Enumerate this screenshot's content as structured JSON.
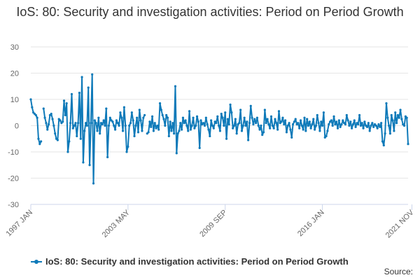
{
  "chart_data": {
    "type": "line",
    "title": "IoS: 80: Security and investigation activities: Period on Period Growth",
    "xlabel": "",
    "ylabel": "",
    "ylim": [
      -30,
      30
    ],
    "yticks": [
      30,
      20,
      10,
      0,
      -10,
      -20,
      -30
    ],
    "xticks": [
      {
        "label": "1997 JAN",
        "index": 0
      },
      {
        "label": "2003 MAY",
        "index": 76
      },
      {
        "label": "2009 SEP",
        "index": 152
      },
      {
        "label": "2016 JAN",
        "index": 228
      },
      {
        "label": "2021 NOV",
        "index": 298
      }
    ],
    "series": [
      {
        "name": "IoS: 80: Security and investigation activities: Period on Period Growth",
        "color": "#0f7ab9",
        "values": [
          10,
          7,
          5,
          4.5,
          4,
          3,
          -5,
          -7,
          -6,
          null,
          6.5,
          3,
          1,
          -1.5,
          0.5,
          4,
          4.5,
          2.5,
          0,
          -3,
          -5,
          -5.5,
          2.5,
          2,
          1,
          1.5,
          9.5,
          4,
          8.5,
          -10,
          -6,
          1,
          12,
          -1,
          0,
          1,
          -4,
          1,
          12.5,
          -5,
          18.5,
          -14,
          -2,
          1,
          0,
          14.5,
          -15,
          1,
          19.5,
          -22,
          2,
          1,
          -2,
          3,
          -3,
          1,
          0.5,
          2,
          0,
          6.5,
          -12,
          0,
          3,
          2,
          1.5,
          0,
          -1.5,
          2,
          1,
          0,
          5,
          3,
          -2,
          7,
          0,
          -10,
          -8,
          0,
          1,
          5,
          2,
          -4,
          0,
          3,
          -2.5,
          6,
          2,
          -2,
          3,
          4,
          null,
          -3,
          -2.5,
          1.5,
          -0.5,
          3.5,
          -2,
          1,
          -1,
          0,
          -1.5,
          8.5,
          6,
          4,
          2.5,
          0,
          4,
          3,
          -4,
          1.5,
          -2,
          1,
          -3,
          15,
          -10.5,
          -3,
          -2,
          1,
          -1.5,
          3,
          1,
          2,
          0,
          -2,
          5.5,
          -1.5,
          0,
          3,
          -1,
          0,
          3.5,
          1.5,
          -8.5,
          2,
          0.5,
          1,
          0,
          3,
          0.5,
          -1.5,
          -4,
          2,
          0,
          -1,
          1.5,
          1,
          3.5,
          0,
          -2,
          4.5,
          3,
          0,
          5,
          -5,
          2.5,
          0.5,
          8,
          5,
          -1,
          0,
          2.5,
          -3,
          0.5,
          1,
          6,
          -2,
          0,
          3,
          0,
          1.5,
          -5.5,
          1,
          7.5,
          3,
          0.5,
          2.5,
          1,
          3,
          0,
          -1.5,
          0,
          -3.5,
          -2.5,
          6,
          1,
          2.5,
          0.5,
          -1,
          3.5,
          0,
          -1,
          2.5,
          1,
          -1.5,
          5.5,
          1,
          1.5,
          3,
          0.5,
          2,
          -2.5,
          0,
          1,
          -1.5,
          -4.5,
          0.5,
          1.5,
          2.5,
          0.5,
          1,
          -1,
          2,
          0,
          -1.5,
          3,
          -2,
          2.5,
          0,
          1.5,
          -1,
          0.5,
          2.5,
          -1.5,
          0,
          4,
          1,
          -2,
          1.5,
          0,
          5,
          -4.5,
          -4,
          -2,
          0.5,
          1.5,
          2,
          0,
          3.5,
          0.5,
          1.5,
          -1,
          2,
          -0.5,
          0.5,
          2,
          1,
          0.5,
          4,
          2,
          0,
          1.5,
          -1,
          0.5,
          2,
          -0.5,
          1,
          0.5,
          4,
          0,
          1,
          -1,
          1.5,
          0,
          -0.5,
          1,
          -2,
          0,
          1,
          -0.5,
          0.5,
          0,
          -1,
          0.5,
          -0.5,
          1,
          -6,
          -7.5,
          -3,
          8.5,
          3,
          0,
          -3,
          4,
          2,
          -2,
          5,
          1,
          4,
          3,
          6,
          2.5,
          0.5,
          0,
          3.5,
          3,
          -7
        ]
      }
    ],
    "legend": "bottom-left",
    "grid": true
  },
  "source_label": "Source:"
}
